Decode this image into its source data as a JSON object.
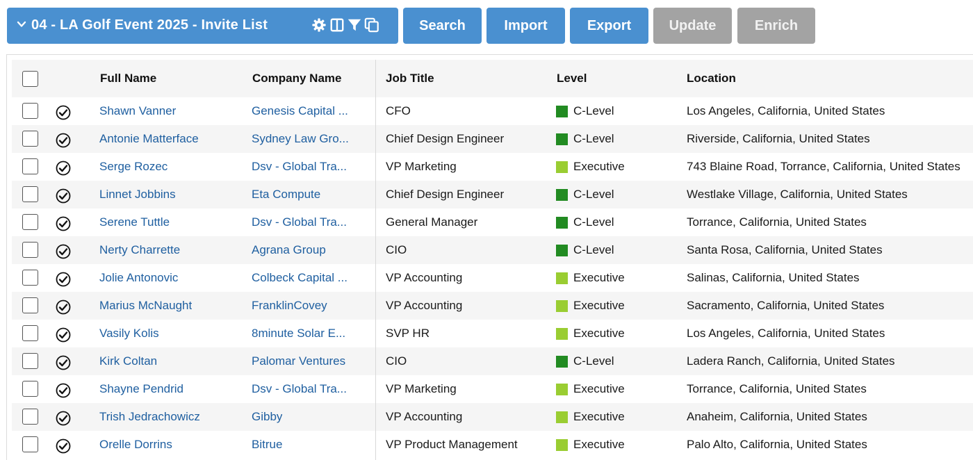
{
  "toolbar": {
    "list_title": "04 - LA Golf Event 2025 - Invite List",
    "icons": [
      "gear-icon",
      "columns-icon",
      "filter-icon",
      "copy-icon"
    ],
    "buttons": {
      "search": "Search",
      "import": "Import",
      "export": "Export",
      "update": "Update",
      "enrich": "Enrich"
    },
    "colors": {
      "primary": "#4a90d0",
      "disabled": "#a3a3a3"
    }
  },
  "table": {
    "columns": {
      "full_name": "Full Name",
      "company_name": "Company Name",
      "job_title": "Job Title",
      "level": "Level",
      "location": "Location"
    },
    "level_colors": {
      "C-Level": "#228b22",
      "Executive": "#9acd32"
    },
    "rows": [
      {
        "full_name": "Shawn Vanner",
        "company": "Genesis Capital ...",
        "job_title": "CFO",
        "level": "C-Level",
        "location": "Los Angeles, California, United States"
      },
      {
        "full_name": "Antonie Matterface",
        "company": "Sydney Law Gro...",
        "job_title": "Chief Design Engineer",
        "level": "C-Level",
        "location": "Riverside, California, United States"
      },
      {
        "full_name": "Serge Rozec",
        "company": "Dsv - Global Tra...",
        "job_title": "VP Marketing",
        "level": "Executive",
        "location": "743 Blaine Road, Torrance, California, United States"
      },
      {
        "full_name": "Linnet Jobbins",
        "company": "Eta Compute",
        "job_title": "Chief Design Engineer",
        "level": "C-Level",
        "location": "Westlake Village, California, United States"
      },
      {
        "full_name": "Serene Tuttle",
        "company": "Dsv - Global Tra...",
        "job_title": "General Manager",
        "level": "C-Level",
        "location": "Torrance, California, United States"
      },
      {
        "full_name": "Nerty Charrette",
        "company": "Agrana Group",
        "job_title": "CIO",
        "level": "C-Level",
        "location": "Santa Rosa, California, United States"
      },
      {
        "full_name": "Jolie Antonovic",
        "company": "Colbeck Capital ...",
        "job_title": "VP Accounting",
        "level": "Executive",
        "location": "Salinas, California, United States"
      },
      {
        "full_name": "Marius McNaught",
        "company": "FranklinCovey",
        "job_title": "VP Accounting",
        "level": "Executive",
        "location": "Sacramento, California, United States"
      },
      {
        "full_name": "Vasily Kolis",
        "company": "8minute Solar E...",
        "job_title": "SVP HR",
        "level": "Executive",
        "location": "Los Angeles, California, United States"
      },
      {
        "full_name": "Kirk Coltan",
        "company": "Palomar Ventures",
        "job_title": "CIO",
        "level": "C-Level",
        "location": "Ladera Ranch, California, United States"
      },
      {
        "full_name": "Shayne Pendrid",
        "company": "Dsv - Global Tra...",
        "job_title": "VP Marketing",
        "level": "Executive",
        "location": "Torrance, California, United States"
      },
      {
        "full_name": "Trish Jedrachowicz",
        "company": "Gibby",
        "job_title": "VP Accounting",
        "level": "Executive",
        "location": "Anaheim, California, United States"
      },
      {
        "full_name": "Orelle Dorrins",
        "company": "Bitrue",
        "job_title": "VP Product Management",
        "level": "Executive",
        "location": "Palo Alto, California, United States"
      }
    ]
  }
}
